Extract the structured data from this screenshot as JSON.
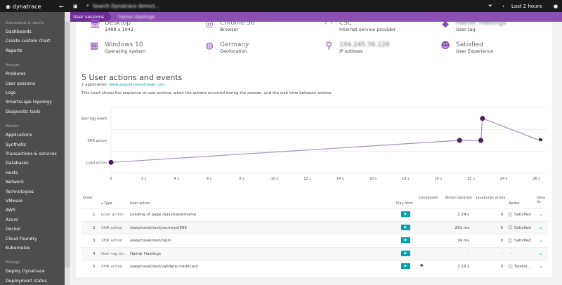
{
  "topbar": {
    "logo": "dynatrace",
    "search_placeholder": "Search Dynatrace demo1...",
    "timeframe": "Last 2 hours"
  },
  "breadcrumb": {
    "parent": "User sessions",
    "current": "Hainer Hastings"
  },
  "sidebar": {
    "sections": [
      {
        "title": "Dashboards & reports",
        "items": [
          "Dashboards",
          "Create custom chart",
          "Reports"
        ]
      },
      {
        "title": "Analyze",
        "items": [
          "Problems",
          "User sessions",
          "Logs",
          "Smartscape topology",
          "Diagnostic tools"
        ]
      },
      {
        "title": "Monitor",
        "items": [
          "Applications",
          "Synthetic",
          "Transactions & services",
          "Databases",
          "Hosts",
          "Network",
          "Technologies",
          "VMware",
          "AWS",
          "Azure",
          "Docker",
          "Cloud Foundry",
          "Kubernetes"
        ]
      },
      {
        "title": "Manage",
        "items": [
          "Deploy Dynatrace",
          "Deployment status"
        ]
      }
    ]
  },
  "info": [
    {
      "icon": "desktop-icon",
      "value": "Desktop",
      "label": "1488 x 1042"
    },
    {
      "icon": "chrome-icon",
      "value": "Chrome 56",
      "label": "Browser"
    },
    {
      "icon": "wifi-icon",
      "value": "CSL",
      "label": "Internet service provider"
    },
    {
      "icon": "tag-icon",
      "value": "Hainer Hastings",
      "label": "User tag"
    },
    {
      "icon": "windows-icon",
      "value": "Windows 10",
      "label": "Operating system"
    },
    {
      "icon": "globe-icon",
      "value": "Germany",
      "label": "Geolocation"
    },
    {
      "icon": "location-pin-icon",
      "value": "194.245.56.126",
      "label": "IP address"
    },
    {
      "icon": "smiley-icon",
      "value": "Satisfied",
      "label": "User Experience"
    }
  ],
  "section": {
    "title": "5 User actions and events",
    "app_label": "1 application:",
    "app_link": "www.angular.easytravel.com",
    "description": "This chart shows the sequence of user actions, when the actions occurred during the session, and the wait time between actions."
  },
  "chart_data": {
    "type": "line",
    "x_ticks": [
      "0",
      "2 s",
      "4 s",
      "6 s",
      "8 s",
      "10 s",
      "12 s",
      "14 s",
      "16 s",
      "18 s",
      "20 s",
      "22 s",
      "24 s",
      "26 s"
    ],
    "xlim": [
      0,
      26.4
    ],
    "y_categories": [
      "Load action",
      "XHR action",
      "User tag event"
    ],
    "points": [
      {
        "x": 0,
        "y": "Load action"
      },
      {
        "x": 21.3,
        "y": "XHR action"
      },
      {
        "x": 22.6,
        "y": "XHR action"
      },
      {
        "x": 22.7,
        "y": "User tag event"
      },
      {
        "x": 26.2,
        "y": "XHR action",
        "marker": "flag"
      }
    ],
    "grid": true,
    "colors": {
      "point": "#4b1d5e",
      "line": "#a58fc0"
    }
  },
  "table": {
    "headers": {
      "order": "Order",
      "type": "Type",
      "action": "User action",
      "play": "Play from",
      "conversion": "Conversion",
      "duration": "Action duration",
      "js": "JavaScript errors",
      "apdex": "Apdex",
      "details": "Details"
    },
    "rows": [
      {
        "order": "1",
        "type": "Load action",
        "action": "Loading of page /easytravel/home",
        "duration": "2.24 s",
        "js": "0",
        "apdex": "Satisfied",
        "conversion": ""
      },
      {
        "order": "2",
        "type": "XHR action",
        "action": "/easytravel/rest/journeys/969",
        "duration": "261 ms",
        "js": "0",
        "apdex": "Satisfied",
        "conversion": ""
      },
      {
        "order": "3",
        "type": "XHR action",
        "action": "/easytravel/rest/login",
        "duration": "74 ms",
        "js": "0",
        "apdex": "Satisfied",
        "conversion": ""
      },
      {
        "order": "4",
        "type": "User tag ev...",
        "action": "Hainer Hastings",
        "duration": "-",
        "js": "-",
        "apdex": "-",
        "conversion": ""
      },
      {
        "order": "5",
        "type": "XHR action",
        "action": "/easytravel/rest/validate-creditcard",
        "duration": "3.19 s",
        "js": "0",
        "apdex": "Tolerat...",
        "conversion": "flag"
      }
    ]
  },
  "colors": {
    "accent": "#8b4fb4",
    "teal": "#00a1b2",
    "topbar": "#1a1a1a",
    "sidebar": "#4d4d4d"
  }
}
